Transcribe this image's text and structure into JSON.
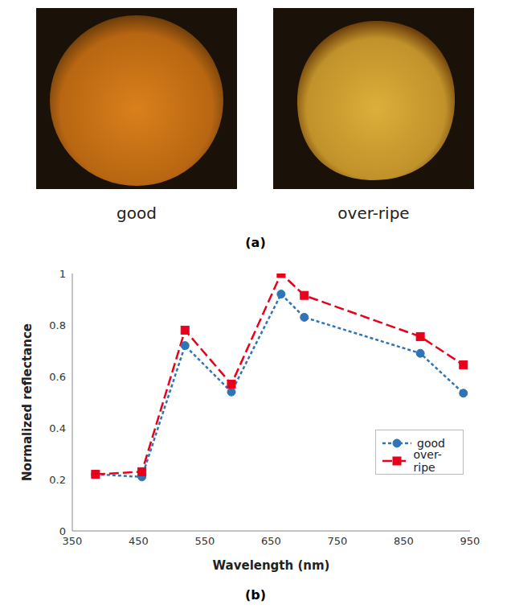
{
  "panels": [
    "(a)",
    "(b)"
  ],
  "photos": [
    {
      "label": "good"
    },
    {
      "label": "over-ripe"
    }
  ],
  "chart_data": {
    "type": "line",
    "x_label": "Wavelength (nm)",
    "y_label": "Normalized reflectance",
    "x": [
      385,
      455,
      520,
      590,
      665,
      700,
      875,
      940
    ],
    "series": [
      {
        "name": "good",
        "color": "#2e75b6",
        "marker": "circle",
        "line_style": "short-dashed",
        "values": [
          0.22,
          0.21,
          0.72,
          0.54,
          0.92,
          0.83,
          0.69,
          0.535
        ]
      },
      {
        "name": "over-ripe",
        "color": "#e8001c",
        "marker": "square",
        "line_style": "long-dashed",
        "values": [
          0.22,
          0.23,
          0.78,
          0.57,
          1.0,
          0.915,
          0.755,
          0.645
        ]
      }
    ],
    "xlim": [
      350,
      950
    ],
    "xticks": [
      350,
      450,
      550,
      650,
      750,
      850,
      950
    ],
    "ylim": [
      0,
      1
    ],
    "yticks": [
      0,
      0.2,
      0.4,
      0.6,
      0.8,
      1
    ],
    "legend": "lower right",
    "grid": false
  }
}
